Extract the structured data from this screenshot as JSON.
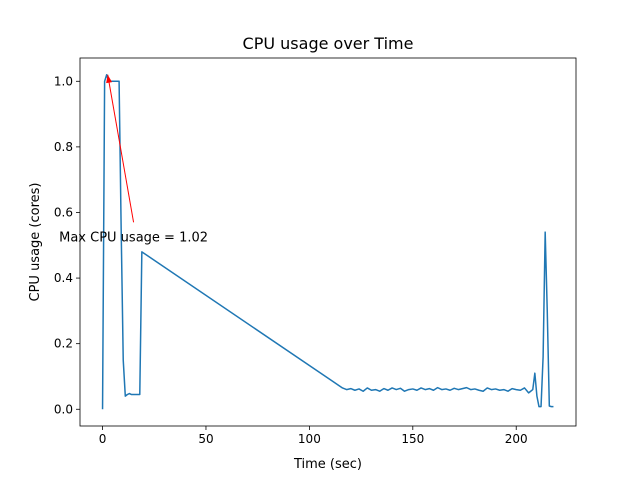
{
  "chart_data": {
    "type": "line",
    "title": "CPU usage over Time",
    "xlabel": "Time (sec)",
    "ylabel": "CPU usage (cores)",
    "xlim": [
      -10.9,
      228.9
    ],
    "ylim": [
      -0.051,
      1.071
    ],
    "xticks": [
      0,
      50,
      100,
      150,
      200
    ],
    "yticks": [
      0.0,
      0.2,
      0.4,
      0.6,
      0.8,
      1.0
    ],
    "xtick_labels": [
      "0",
      "50",
      "100",
      "150",
      "200"
    ],
    "ytick_labels": [
      "0.0",
      "0.2",
      "0.4",
      "0.6",
      "0.8",
      "1.0"
    ],
    "grid": false,
    "line_color": "#1f77b4",
    "annotation": {
      "text": "Max CPU usage = 1.02",
      "color": "#ff0000",
      "point": [
        2.5,
        1.02
      ],
      "text_anchor": [
        15,
        0.57
      ]
    },
    "series": [
      {
        "x": [
          0,
          1,
          2,
          3,
          4,
          5,
          6,
          7,
          8,
          9,
          10,
          11,
          12,
          13,
          14,
          15,
          16,
          17,
          18,
          19,
          116,
          118,
          120,
          122,
          124,
          126,
          128,
          130,
          132,
          134,
          136,
          138,
          140,
          142,
          144,
          146,
          148,
          150,
          152,
          154,
          156,
          158,
          160,
          162,
          164,
          166,
          168,
          170,
          172,
          174,
          176,
          178,
          180,
          182,
          184,
          186,
          188,
          190,
          192,
          194,
          196,
          198,
          200,
          202,
          204,
          206,
          207,
          208,
          209,
          210,
          211,
          212,
          213,
          214,
          215,
          216,
          217,
          218
        ],
        "y": [
          0.0,
          1.0,
          1.02,
          1.0,
          1.0,
          1.0,
          1.0,
          1.0,
          1.0,
          0.55,
          0.15,
          0.04,
          0.045,
          0.048,
          0.045,
          0.045,
          0.045,
          0.045,
          0.045,
          0.48,
          0.065,
          0.06,
          0.063,
          0.058,
          0.062,
          0.055,
          0.065,
          0.058,
          0.06,
          0.055,
          0.063,
          0.058,
          0.065,
          0.06,
          0.064,
          0.055,
          0.06,
          0.062,
          0.058,
          0.065,
          0.06,
          0.063,
          0.058,
          0.066,
          0.06,
          0.062,
          0.058,
          0.064,
          0.06,
          0.063,
          0.066,
          0.06,
          0.062,
          0.058,
          0.055,
          0.065,
          0.06,
          0.062,
          0.058,
          0.06,
          0.055,
          0.063,
          0.06,
          0.058,
          0.065,
          0.05,
          0.055,
          0.06,
          0.11,
          0.04,
          0.008,
          0.008,
          0.16,
          0.54,
          0.3,
          0.01,
          0.008,
          0.008
        ]
      }
    ]
  }
}
